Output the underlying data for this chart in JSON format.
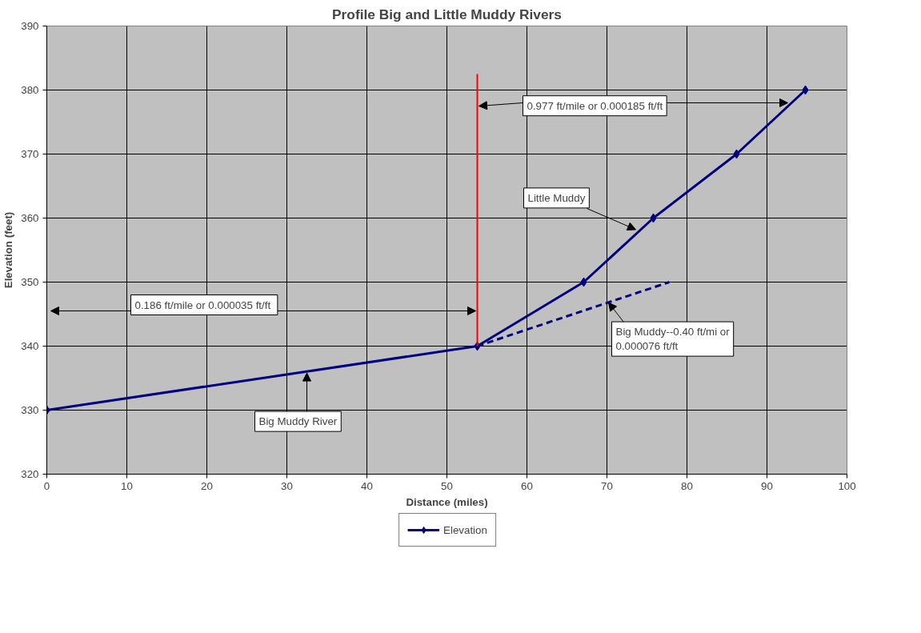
{
  "chart_data": {
    "type": "line",
    "title": "Profile Big and Little Muddy Rivers",
    "xlabel": "Distance (miles)",
    "ylabel": "Elevation (feet)",
    "xlim": [
      0,
      100
    ],
    "xticks": [
      0,
      10,
      20,
      30,
      40,
      50,
      60,
      70,
      80,
      90,
      100
    ],
    "ylim": [
      320,
      390
    ],
    "yticks": [
      320,
      330,
      340,
      350,
      360,
      370,
      380,
      390
    ],
    "grid": true,
    "legend": "bottom",
    "series": [
      {
        "name": "Elevation",
        "color": "#000080",
        "marker": "diamond",
        "line_style": "solid",
        "x": [
          0,
          53.8,
          67.1,
          75.8,
          86.2,
          94.8
        ],
        "values": [
          330,
          340,
          350,
          360,
          370,
          380
        ]
      },
      {
        "color": "#000080",
        "marker": "none",
        "line_style": "dashed",
        "x": [
          53.8,
          77.8
        ],
        "values": [
          340,
          350
        ]
      },
      {
        "color": "#ff0000",
        "marker": "none",
        "line_style": "solid",
        "x": [
          53.8,
          53.8
        ],
        "values": [
          340,
          382.5
        ]
      }
    ],
    "annotations": [
      {
        "text": "0.186 ft/mile or  0.000035 ft/ft",
        "x": 53.6,
        "y": 345.5
      },
      {
        "text": "0.977 ft/mile or 0.000185 ft/ft",
        "x": 92.6,
        "y": 378
      },
      {
        "text": "Little Muddy",
        "x": 73.6,
        "y": 358.2
      },
      {
        "text": "Big Muddy--0.40 ft/mi or\n0.000076 ft/ft",
        "x": 70.2,
        "y": 346.8
      },
      {
        "text": "Big Muddy River",
        "x": 32.5,
        "y": 335.8
      }
    ]
  }
}
